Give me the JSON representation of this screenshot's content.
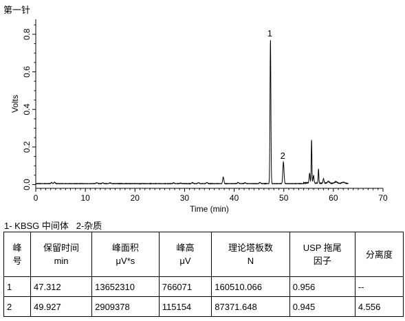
{
  "header": {
    "title": "第一针"
  },
  "chart_data": {
    "type": "line",
    "title": "",
    "xlabel": "Time (min)",
    "ylabel": "Volts",
    "xlim": [
      0,
      70
    ],
    "ylim": [
      -0.02,
      0.88
    ],
    "xticks": [
      0,
      10,
      20,
      30,
      40,
      50,
      60,
      70
    ],
    "yticks": [
      0.0,
      0.2,
      0.4,
      0.6,
      0.8
    ],
    "ytick_labels": [
      "0.0",
      "0.2",
      "0.4",
      "0.6",
      "0.8"
    ],
    "grid": false,
    "baseline": 0.005,
    "series": [
      {
        "color": "#000000",
        "peaks": [
          {
            "t": 3.2,
            "h": 0.006,
            "w": 0.12
          },
          {
            "t": 3.8,
            "h": 0.008,
            "w": 0.12
          },
          {
            "t": 12.3,
            "h": 0.005,
            "w": 0.15
          },
          {
            "t": 13.5,
            "h": 0.004,
            "w": 0.15
          },
          {
            "t": 15.0,
            "h": 0.004,
            "w": 0.15
          },
          {
            "t": 27.8,
            "h": 0.004,
            "w": 0.15
          },
          {
            "t": 29.2,
            "h": 0.003,
            "w": 0.15
          },
          {
            "t": 31.6,
            "h": 0.005,
            "w": 0.15
          },
          {
            "t": 32.8,
            "h": 0.005,
            "w": 0.15
          },
          {
            "t": 34.5,
            "h": 0.006,
            "w": 0.15
          },
          {
            "t": 37.8,
            "h": 0.035,
            "w": 0.12
          },
          {
            "t": 40.8,
            "h": 0.006,
            "w": 0.15
          },
          {
            "t": 42.2,
            "h": 0.004,
            "w": 0.15
          },
          {
            "t": 45.2,
            "h": 0.006,
            "w": 0.15
          },
          {
            "t": 47.312,
            "h": 0.766,
            "w": 0.09
          },
          {
            "t": 49.927,
            "h": 0.115,
            "w": 0.12
          },
          {
            "t": 55.2,
            "h": 0.05,
            "w": 0.1
          },
          {
            "t": 55.6,
            "h": 0.23,
            "w": 0.07
          },
          {
            "t": 56.0,
            "h": 0.04,
            "w": 0.1
          },
          {
            "t": 57.0,
            "h": 0.075,
            "w": 0.07
          },
          {
            "t": 58.0,
            "h": 0.025,
            "w": 0.1
          },
          {
            "t": 59.0,
            "h": 0.01,
            "w": 0.2
          },
          {
            "t": 60.5,
            "h": 0.008,
            "w": 0.3
          },
          {
            "t": 62.0,
            "h": 0.006,
            "w": 0.3
          }
        ]
      }
    ],
    "annotations": [
      {
        "label": "1",
        "t": 47.312,
        "v": 0.766
      },
      {
        "label": "2",
        "t": 49.927,
        "v": 0.115
      }
    ]
  },
  "peak_legend": "1- KBSG 中间体   2-杂质",
  "table": {
    "headers": [
      [
        "峰",
        "号"
      ],
      [
        "保留时间",
        "min"
      ],
      [
        "峰面积",
        "μV*s"
      ],
      [
        "峰高",
        "μV"
      ],
      [
        "理论塔板数",
        "N"
      ],
      [
        "USP 拖尾",
        "因子"
      ],
      [
        "分离度"
      ]
    ],
    "rows": [
      [
        "1",
        "47.312",
        "13652310",
        "766071",
        "160510.066",
        "0.956",
        "--"
      ],
      [
        "2",
        "49.927",
        "2909378",
        "115154",
        "87371.648",
        "0.945",
        "4.556"
      ]
    ]
  }
}
